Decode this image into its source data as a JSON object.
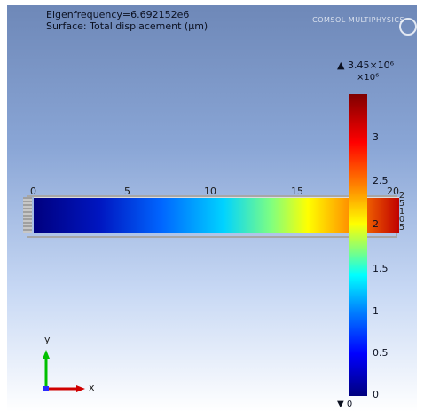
{
  "header": {
    "line1": "Eigenfrequency=6.692152e6",
    "line2": "Surface: Total displacement (μm)"
  },
  "logo": {
    "text": "COMSOL MULTIPHYSICS"
  },
  "geometry_axis": {
    "ticks": [
      "0",
      "5",
      "10",
      "15",
      "20"
    ]
  },
  "colorbar": {
    "max_label": "▲ 3.45×10⁶",
    "exponent_label": "×10⁶",
    "ticks": [
      "3",
      "2.5",
      "2",
      "1.5",
      "1",
      "0.5",
      "0"
    ],
    "min_label": "▼ 0",
    "side_digits": [
      "2",
      "5",
      "1",
      "0",
      "5"
    ]
  },
  "axes_triad": {
    "x_label": "x",
    "y_label": "y"
  },
  "colors": {
    "accent_red": "#c00000",
    "accent_blue": "#00007f",
    "beam_outline": "#a7a7a7"
  }
}
